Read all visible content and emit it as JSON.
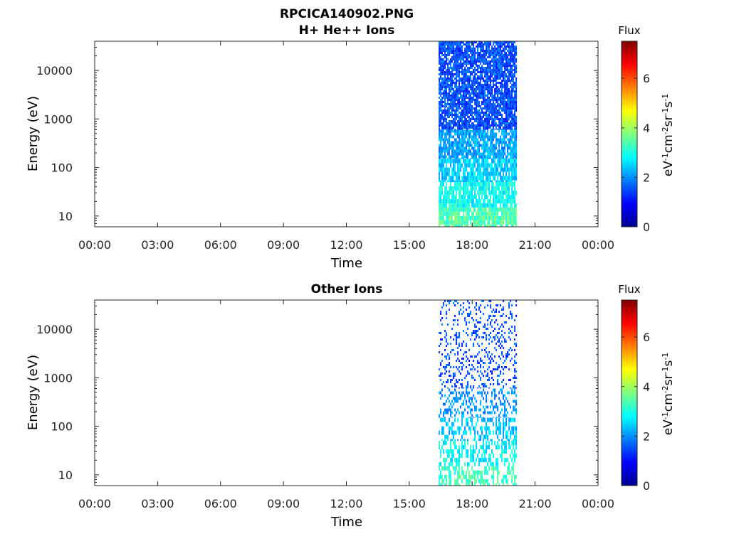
{
  "figure": {
    "title_line1": "RPCICA140902.PNG"
  },
  "panels": [
    {
      "title": "H+ He++ Ions",
      "ylabel": "Energy (eV)",
      "xlabel": "Time",
      "colorbar_title": "Flux",
      "colorbar_units": "eV-1 cm-2 sr-1 s-1"
    },
    {
      "title": "Other Ions",
      "ylabel": "Energy (eV)",
      "xlabel": "Time",
      "colorbar_title": "Flux",
      "colorbar_units": "eV-1 cm-2 sr-1 s-1"
    }
  ],
  "chart_data": [
    {
      "type": "heatmap",
      "title": "RPCICA140902.PNG H+ He++ Ions",
      "xlabel": "Time",
      "ylabel": "Energy (eV)",
      "x_ticks": [
        "00:00",
        "03:00",
        "06:00",
        "09:00",
        "12:00",
        "15:00",
        "18:00",
        "21:00",
        "00:00"
      ],
      "xlim_hours": [
        0,
        24
      ],
      "y_scale": "log",
      "y_ticks": [
        10,
        100,
        1000,
        10000
      ],
      "y_tick_labels": [
        "10",
        "100",
        "1000",
        "10000"
      ],
      "ylim": [
        6,
        40000
      ],
      "data_interval_hours": [
        16.4,
        20.1
      ],
      "colorbar": {
        "label": "Flux",
        "units": "eV-1 cm-2 sr-1 s-1",
        "range": [
          0,
          7.5
        ],
        "ticks": [
          0,
          2,
          4,
          6
        ],
        "colormap": "jet"
      },
      "bands": [
        {
          "energy_range": [
            6,
            15
          ],
          "flux": 3.4,
          "density": 0.85
        },
        {
          "energy_range": [
            15,
            50
          ],
          "flux": 2.9,
          "density": 0.85
        },
        {
          "energy_range": [
            50,
            150
          ],
          "flux": 2.5,
          "density": 0.85
        },
        {
          "energy_range": [
            150,
            600
          ],
          "flux": 2.1,
          "density": 0.85
        },
        {
          "energy_range": [
            600,
            40000
          ],
          "flux": 1.5,
          "density": 0.85
        }
      ]
    },
    {
      "type": "heatmap",
      "title": "Other Ions",
      "xlabel": "Time",
      "ylabel": "Energy (eV)",
      "x_ticks": [
        "00:00",
        "03:00",
        "06:00",
        "09:00",
        "12:00",
        "15:00",
        "18:00",
        "21:00",
        "00:00"
      ],
      "xlim_hours": [
        0,
        24
      ],
      "y_scale": "log",
      "y_ticks": [
        10,
        100,
        1000,
        10000
      ],
      "y_tick_labels": [
        "10",
        "100",
        "1000",
        "10000"
      ],
      "ylim": [
        6,
        40000
      ],
      "data_interval_hours": [
        16.4,
        20.1
      ],
      "colorbar": {
        "label": "Flux",
        "units": "eV-1 cm-2 sr-1 s-1",
        "range": [
          0,
          7.5
        ],
        "ticks": [
          0,
          2,
          4,
          6
        ],
        "colormap": "jet"
      },
      "bands": [
        {
          "energy_range": [
            6,
            15
          ],
          "flux": 3.3,
          "density": 0.55
        },
        {
          "energy_range": [
            15,
            50
          ],
          "flux": 2.8,
          "density": 0.5
        },
        {
          "energy_range": [
            50,
            150
          ],
          "flux": 2.4,
          "density": 0.45
        },
        {
          "energy_range": [
            150,
            600
          ],
          "flux": 2.0,
          "density": 0.35
        },
        {
          "energy_range": [
            600,
            40000
          ],
          "flux": 1.5,
          "density": 0.22
        }
      ]
    }
  ]
}
